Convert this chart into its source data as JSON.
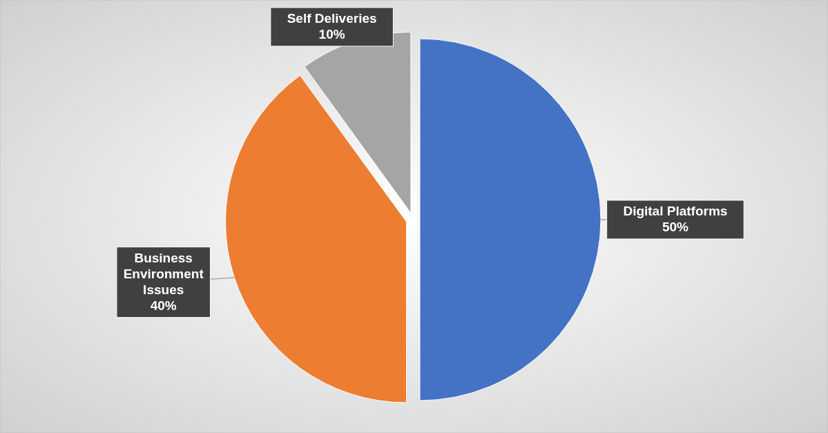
{
  "chart_data": {
    "type": "pie",
    "categories": [
      "Digital Platforms",
      "Business Environment Issues",
      "Self Deliveries"
    ],
    "values": [
      50,
      40,
      10
    ],
    "colors": [
      "#4472c4",
      "#ed7d31",
      "#a5a5a5"
    ],
    "value_labels": [
      "50%",
      "40%",
      "10%"
    ],
    "legend": false
  }
}
